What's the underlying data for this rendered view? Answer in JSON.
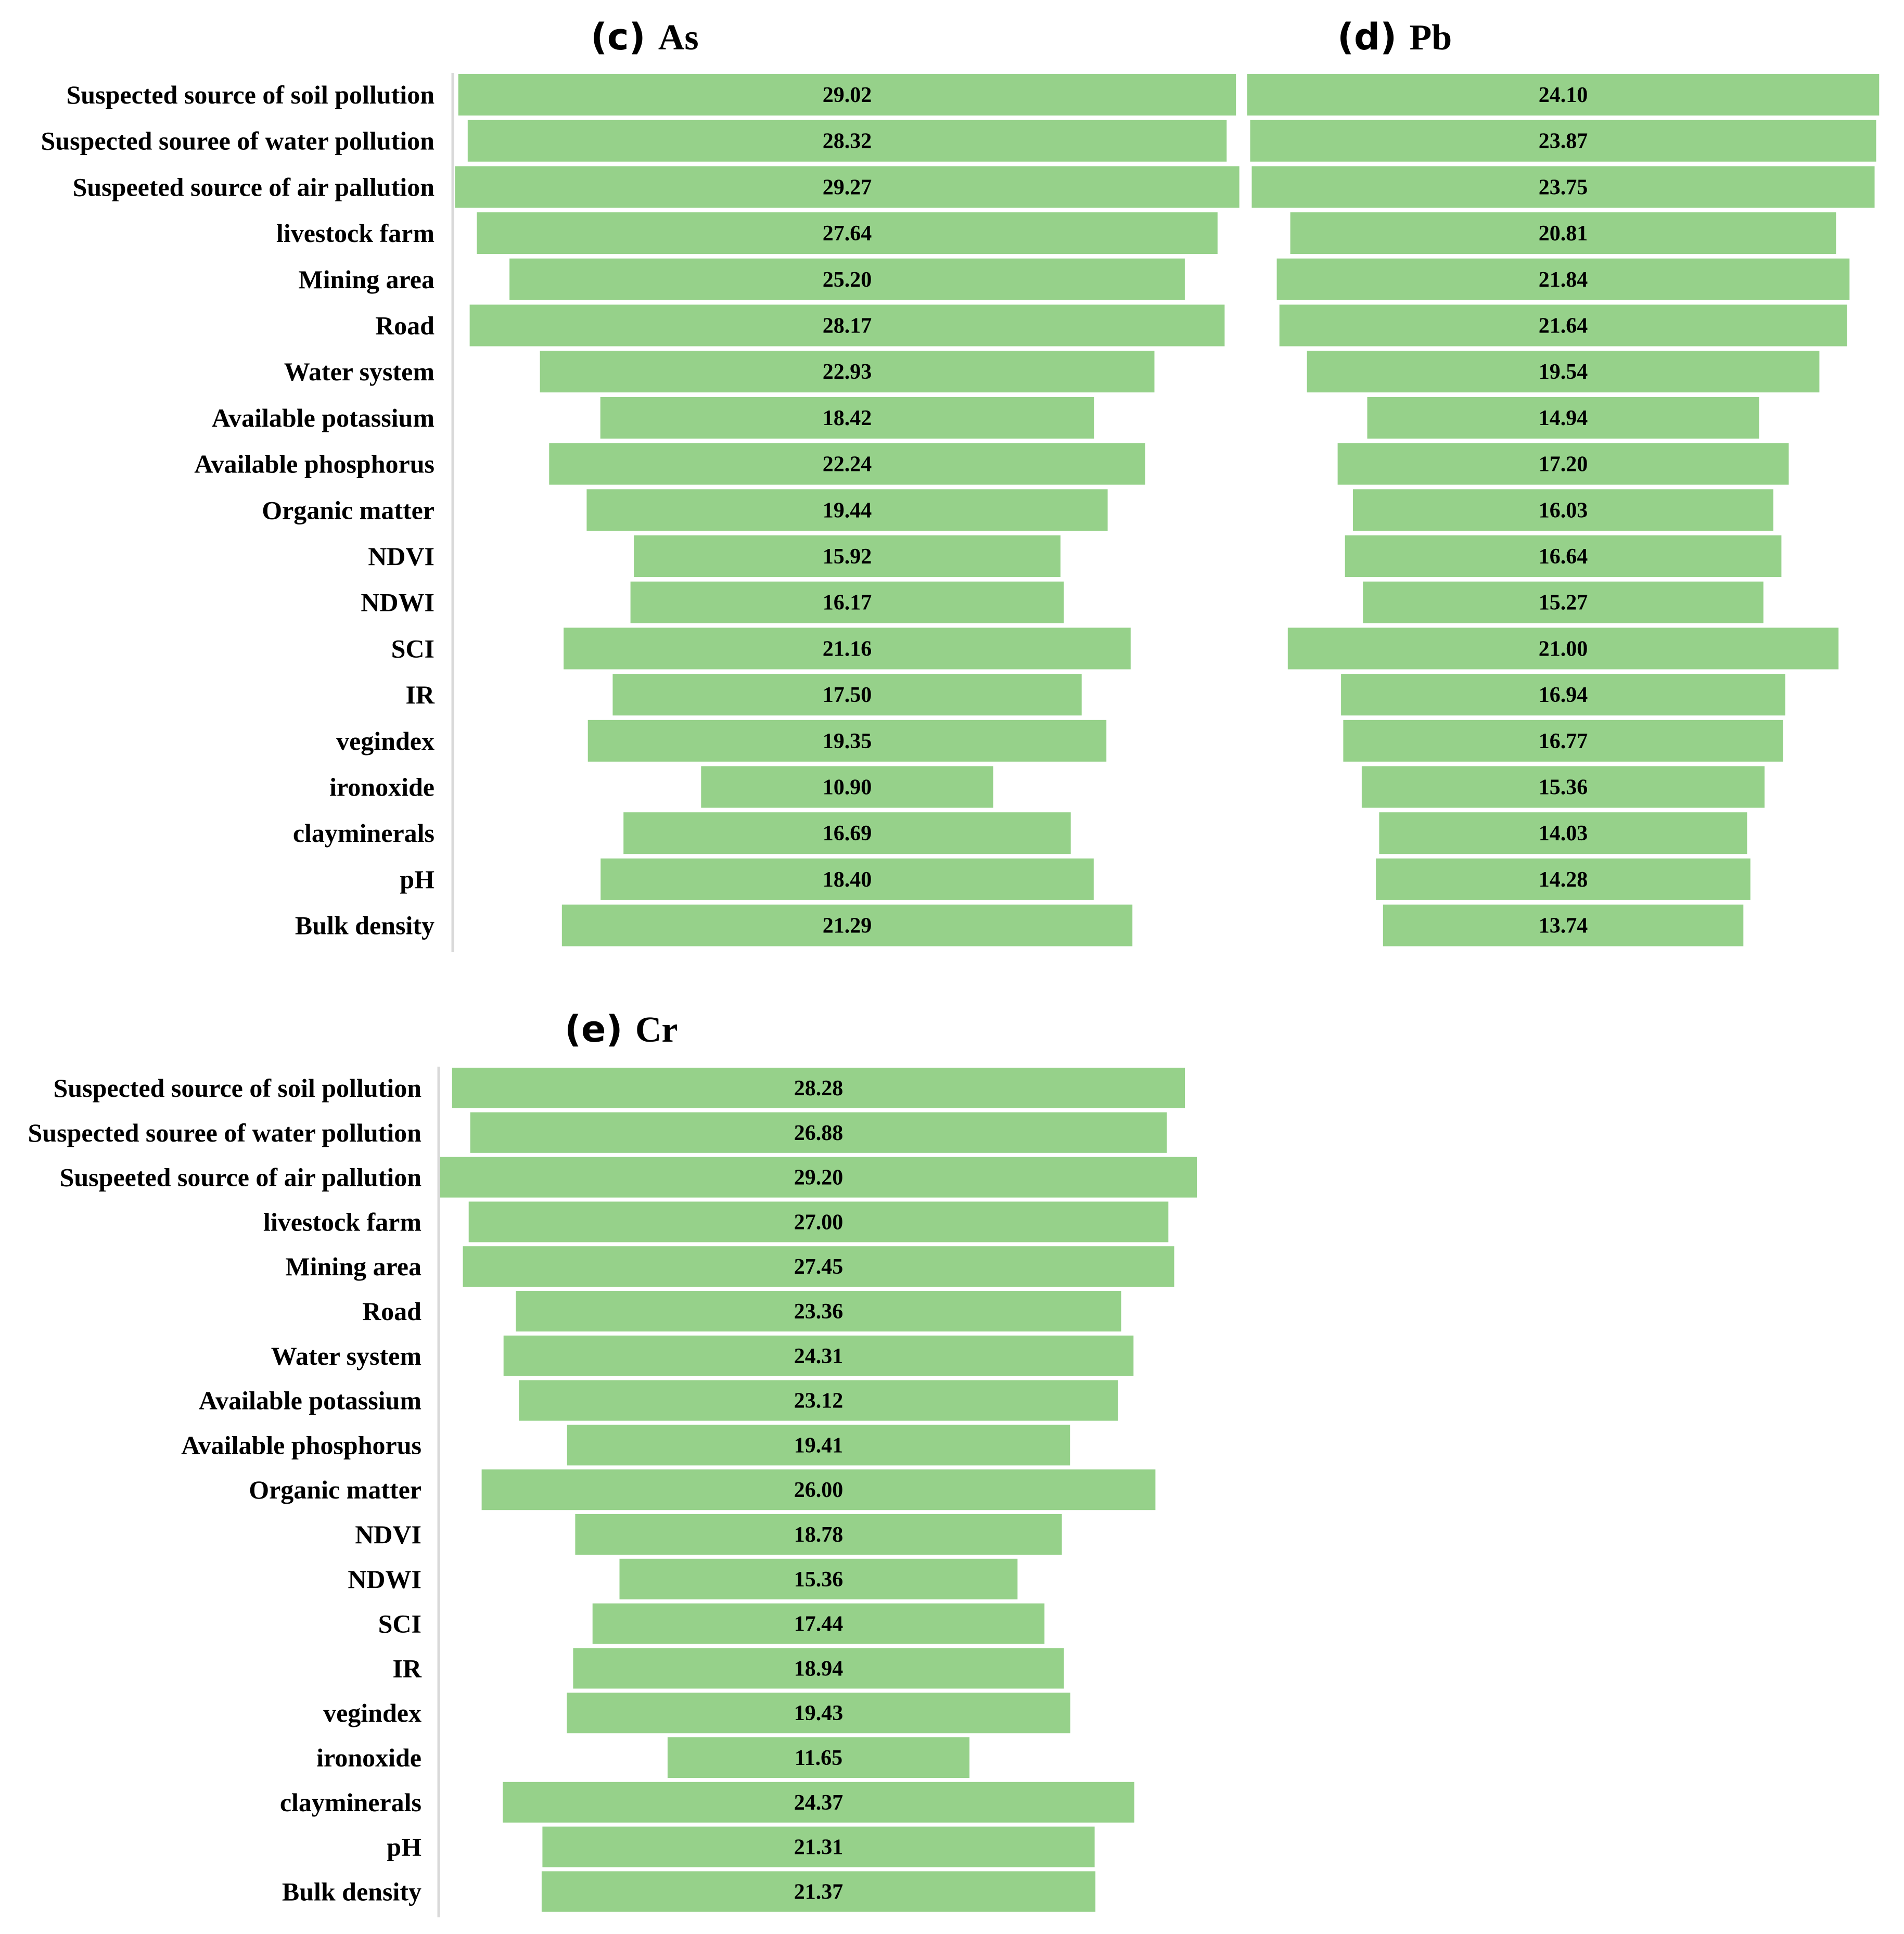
{
  "chart_data": [
    {
      "type": "bar",
      "orientation": "horizontal-centered",
      "title_prefix": "(c)",
      "title_symbol": "As",
      "categories": [
        "Suspected source of soil pollution",
        "Suspected souree of water pollution",
        "Suspeeted source of air pallution",
        "livestock farm",
        "Mining area",
        "Road",
        "Water system",
        "Available potassium",
        "Available phosphorus",
        "Organic matter",
        "NDVI",
        "NDWI",
        "SCI",
        "IR",
        "vegindex",
        "ironoxide",
        "clayminerals",
        "pH",
        "Bulk density"
      ],
      "values": [
        29.02,
        28.32,
        29.27,
        27.64,
        25.2,
        28.17,
        22.93,
        18.42,
        22.24,
        19.44,
        15.92,
        16.17,
        21.16,
        17.5,
        19.35,
        10.9,
        16.69,
        18.4,
        21.29
      ],
      "value_labels": [
        "29.02",
        "28.32",
        "29.27",
        "27.64",
        "25.20",
        "28.17",
        "22.93",
        "18.42",
        "22.24",
        "19.44",
        "15.92",
        "16.17",
        "21.16",
        "17.50",
        "19.35",
        "10.90",
        "16.69",
        "18.40",
        "21.29"
      ],
      "bar_color": "#96d18a"
    },
    {
      "type": "bar",
      "orientation": "horizontal-centered",
      "title_prefix": "(d)",
      "title_symbol": "Pb",
      "categories": [
        "Suspected source of soil pollution",
        "Suspected souree of water pollution",
        "Suspeeted source of air pallution",
        "livestock farm",
        "Mining area",
        "Road",
        "Water system",
        "Available potassium",
        "Available phosphorus",
        "Organic matter",
        "NDVI",
        "NDWI",
        "SCI",
        "IR",
        "vegindex",
        "ironoxide",
        "clayminerals",
        "pH",
        "Bulk density"
      ],
      "values": [
        24.1,
        23.87,
        23.75,
        20.81,
        21.84,
        21.64,
        19.54,
        14.94,
        17.2,
        16.03,
        16.64,
        15.27,
        21.0,
        16.94,
        16.77,
        15.36,
        14.03,
        14.28,
        13.74
      ],
      "value_labels": [
        "24.10",
        "23.87",
        "23.75",
        "20.81",
        "21.84",
        "21.64",
        "19.54",
        "14.94",
        "17.20",
        "16.03",
        "16.64",
        "15.27",
        "21.00",
        "16.94",
        "16.77",
        "15.36",
        "14.03",
        "14.28",
        "13.74"
      ],
      "bar_color": "#96d18a"
    },
    {
      "type": "bar",
      "orientation": "horizontal-centered",
      "title_prefix": "(e)",
      "title_symbol": "Cr",
      "categories": [
        "Suspected source of soil pollution",
        "Suspected souree of water pollution",
        "Suspeeted source of air pallution",
        "livestock farm",
        "Mining area",
        "Road",
        "Water system",
        "Available potassium",
        "Available phosphorus",
        "Organic matter",
        "NDVI",
        "NDWI",
        "SCI",
        "IR",
        "vegindex",
        "ironoxide",
        "clayminerals",
        "pH",
        "Bulk density"
      ],
      "values": [
        28.28,
        26.88,
        29.2,
        27.0,
        27.45,
        23.36,
        24.31,
        23.12,
        19.41,
        26.0,
        18.78,
        15.36,
        17.44,
        18.94,
        19.43,
        11.65,
        24.37,
        21.31,
        21.37
      ],
      "value_labels": [
        "28.28",
        "26.88",
        "29.20",
        "27.00",
        "27.45",
        "23.36",
        "24.31",
        "23.12",
        "19.41",
        "26.00",
        "18.78",
        "15.36",
        "17.44",
        "18.94",
        "19.43",
        "11.65",
        "24.37",
        "21.31",
        "21.37"
      ],
      "bar_color": "#96d18a"
    }
  ]
}
